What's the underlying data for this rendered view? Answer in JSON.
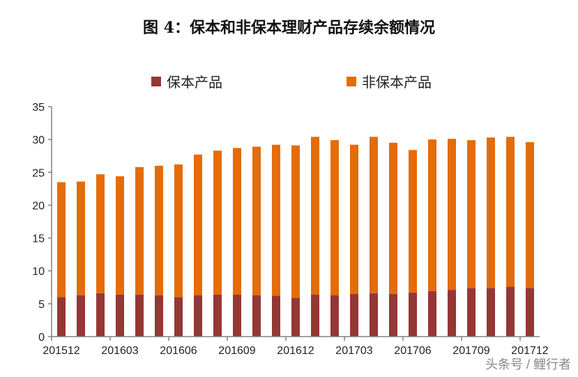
{
  "title": "图 4：保本和非保本理财产品存续余额情况",
  "watermark": "头条号 / 鲤行者",
  "chart_data": {
    "type": "bar",
    "stacked": true,
    "title": "图 4：保本和非保本理财产品存续余额情况",
    "xlabel": "",
    "ylabel": "",
    "ylim": [
      0,
      35
    ],
    "yticks": [
      0,
      5,
      10,
      15,
      20,
      25,
      30,
      35
    ],
    "grid": false,
    "legend_position": "top",
    "categories": [
      "201512",
      "201601",
      "201602",
      "201603",
      "201604",
      "201605",
      "201606",
      "201607",
      "201608",
      "201609",
      "201610",
      "201611",
      "201612",
      "201701",
      "201702",
      "201703",
      "201704",
      "201705",
      "201706",
      "201707",
      "201708",
      "201709",
      "201710",
      "201711",
      "201712"
    ],
    "xtick_labels": [
      "201512",
      "201603",
      "201606",
      "201609",
      "201612",
      "201703",
      "201706",
      "201709",
      "201712"
    ],
    "series": [
      {
        "name": "保本产品",
        "color": "#953735",
        "values": [
          6.0,
          6.3,
          6.6,
          6.4,
          6.4,
          6.3,
          6.0,
          6.3,
          6.4,
          6.4,
          6.3,
          6.2,
          5.9,
          6.4,
          6.3,
          6.5,
          6.6,
          6.5,
          6.7,
          6.9,
          7.1,
          7.4,
          7.4,
          7.6,
          7.4
        ]
      },
      {
        "name": "非保本产品",
        "color": "#E46C0A",
        "values": [
          17.5,
          17.3,
          18.1,
          18.0,
          19.4,
          19.7,
          20.2,
          21.4,
          21.9,
          22.3,
          22.6,
          23.0,
          23.2,
          24.0,
          23.6,
          22.7,
          23.8,
          23.0,
          21.7,
          23.1,
          23.0,
          22.5,
          22.9,
          22.8,
          22.2
        ]
      }
    ]
  }
}
